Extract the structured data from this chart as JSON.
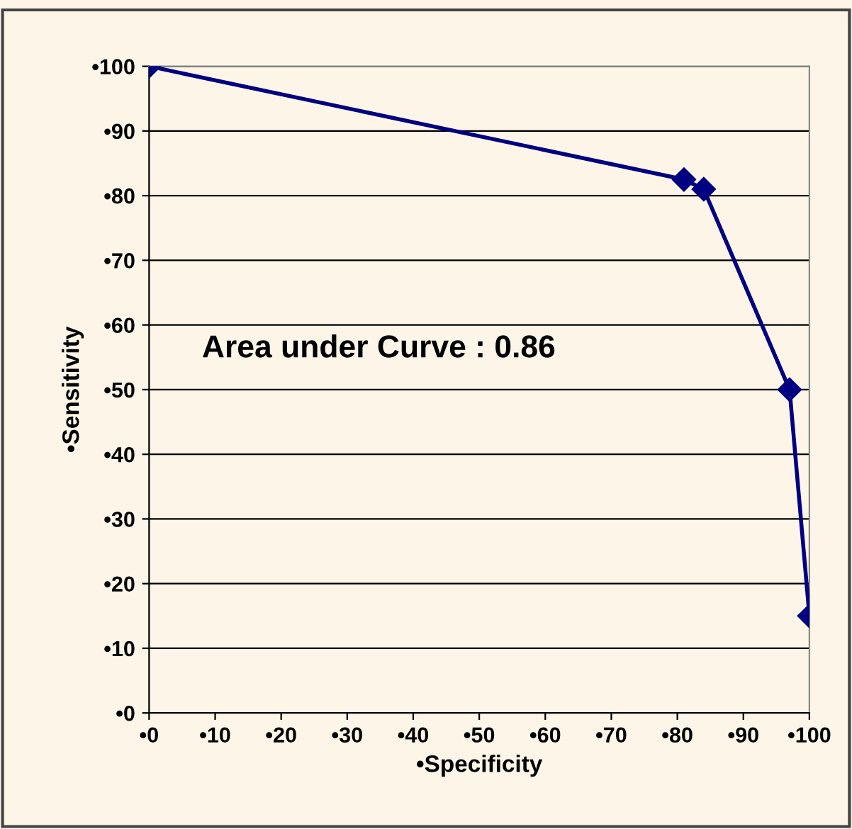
{
  "chart_data": {
    "type": "line",
    "xlabel": "•Specificity",
    "ylabel": "•Sensitivity",
    "x": [
      0,
      81,
      84,
      97,
      100
    ],
    "series": [
      {
        "color": "#000080",
        "values": [
          100,
          82.5,
          81,
          50,
          15
        ]
      }
    ],
    "xlim": [
      0,
      100
    ],
    "ylim": [
      0,
      100
    ],
    "xticks": [
      {
        "value": 0,
        "label": "•0"
      },
      {
        "value": 10,
        "label": "•10"
      },
      {
        "value": 20,
        "label": "•20"
      },
      {
        "value": 30,
        "label": "•30"
      },
      {
        "value": 40,
        "label": "•40"
      },
      {
        "value": 50,
        "label": "•50"
      },
      {
        "value": 60,
        "label": "•60"
      },
      {
        "value": 70,
        "label": "•70"
      },
      {
        "value": 80,
        "label": "•80"
      },
      {
        "value": 90,
        "label": "•90"
      },
      {
        "value": 100,
        "label": "•100"
      }
    ],
    "yticks": [
      {
        "value": 0,
        "label": "•0"
      },
      {
        "value": 10,
        "label": "•10"
      },
      {
        "value": 20,
        "label": "•20"
      },
      {
        "value": 30,
        "label": "•30"
      },
      {
        "value": 40,
        "label": "•40"
      },
      {
        "value": 50,
        "label": "•50"
      },
      {
        "value": 60,
        "label": "•60"
      },
      {
        "value": 70,
        "label": "•70"
      },
      {
        "value": 80,
        "label": "•80"
      },
      {
        "value": 90,
        "label": "•90"
      },
      {
        "value": 100,
        "label": "•100"
      }
    ],
    "grid": "y",
    "marker": "diamond",
    "line_style": "solid",
    "annotations": [
      "Area under Curve : 0.86"
    ]
  }
}
